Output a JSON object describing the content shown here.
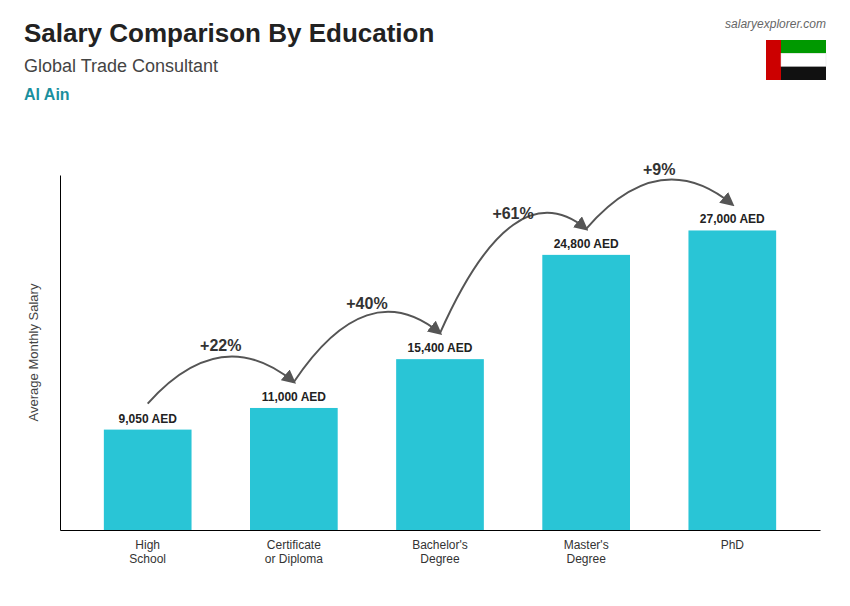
{
  "chart_data": {
    "type": "bar",
    "title": "Salary Comparison By Education",
    "subtitle": "Global Trade Consultant",
    "ylabel": "Average Monthly Salary",
    "categories": [
      "High\nSchool",
      "Certificate\nor Diploma",
      "Bachelor's\nDegree",
      "Master's\nDegree",
      "PhD"
    ],
    "values": [
      9050,
      11000,
      15400,
      24800,
      27000
    ],
    "value_labels": [
      "9,050 AED",
      "11,000 AED",
      "15,400 AED",
      "24,800 AED",
      "27,000 AED"
    ],
    "data_labels": true,
    "color": "#29c5d6",
    "ylim": [
      0,
      32000
    ],
    "yticks": [],
    "tick_labels": "x",
    "grid": false,
    "annotations": [
      {
        "text": "Al Ain"
      },
      {
        "text": "salaryexplorer.com"
      },
      {
        "text": "+22%",
        "from": 0,
        "to": 1
      },
      {
        "text": "+40%",
        "from": 1,
        "to": 2
      },
      {
        "text": "+61%",
        "from": 2,
        "to": 3
      },
      {
        "text": "+9%",
        "from": 3,
        "to": 4
      }
    ]
  }
}
